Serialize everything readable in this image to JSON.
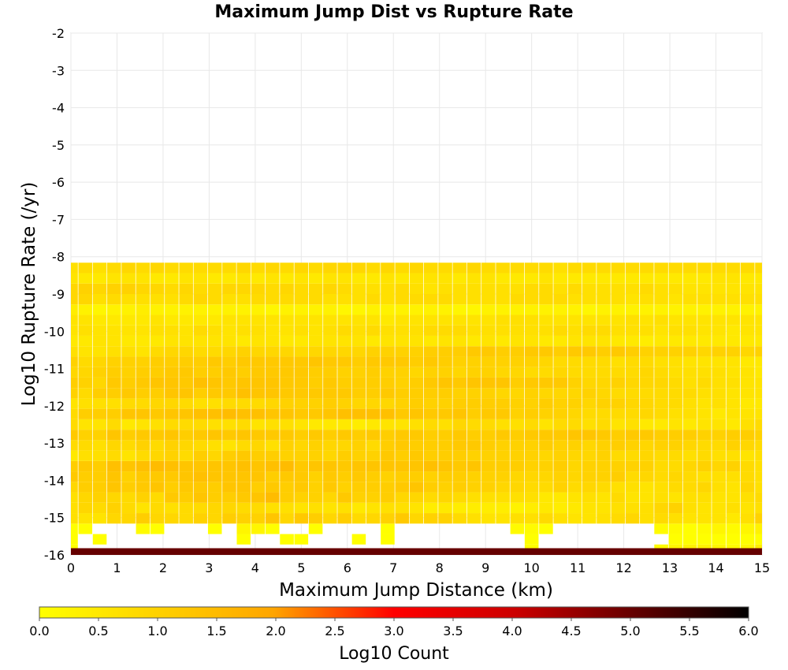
{
  "chart_data": {
    "type": "heatmap",
    "title": "Maximum Jump Dist vs Rupture Rate",
    "xlabel": "Maximum Jump Distance (km)",
    "ylabel": "Log10 Rupture Rate (/yr)",
    "colorbar_label": "Log10 Count",
    "xlim": [
      0,
      15
    ],
    "ylim": [
      -16,
      -2
    ],
    "x_ticks": [
      0,
      1,
      2,
      3,
      4,
      5,
      6,
      7,
      8,
      9,
      10,
      11,
      12,
      13,
      14,
      15
    ],
    "y_ticks": [
      -2,
      -3,
      -4,
      -5,
      -6,
      -7,
      -8,
      -9,
      -10,
      -11,
      -12,
      -13,
      -14,
      -15,
      -16
    ],
    "colorbar_ticks": [
      "0.0",
      "0.5",
      "1.0",
      "1.5",
      "2.0",
      "2.5",
      "3.0",
      "3.5",
      "4.0",
      "4.5",
      "5.0",
      "5.5",
      "6.0"
    ],
    "color_range": [
      0,
      6
    ],
    "colormap": [
      "#ffff00",
      "#ffa500",
      "#ff0000",
      "#000000"
    ],
    "grid": true,
    "x_bin_width": 1,
    "y_bin_height": 0.28,
    "y_bin_start": -16,
    "rows": [
      [
        0.0,
        null,
        null,
        null,
        null,
        null,
        null,
        null,
        null,
        null,
        null,
        null,
        null,
        null,
        null,
        null,
        null,
        null,
        null,
        null,
        null,
        null,
        null,
        null,
        null,
        null,
        null,
        null,
        null,
        null,
        null,
        null,
        0.0,
        null,
        null,
        null,
        null,
        null,
        null,
        null,
        null,
        0.1,
        0.2,
        0.3,
        0.3,
        0.2,
        0.1,
        0.2,
        0.4
      ],
      [
        0.0,
        null,
        0.0,
        null,
        null,
        null,
        null,
        null,
        null,
        null,
        null,
        null,
        0.0,
        null,
        null,
        0.0,
        0.0,
        null,
        null,
        null,
        0.0,
        null,
        0.0,
        null,
        null,
        null,
        null,
        null,
        null,
        null,
        null,
        null,
        0.0,
        null,
        null,
        null,
        null,
        null,
        null,
        null,
        null,
        null,
        0.0,
        0.0,
        0.0,
        0.0,
        0.0,
        0.0,
        0.0
      ],
      [
        0.0,
        0.0,
        null,
        null,
        null,
        0.1,
        0.0,
        null,
        null,
        null,
        0.0,
        null,
        0.2,
        0.2,
        0.0,
        null,
        null,
        0.0,
        null,
        null,
        null,
        null,
        0.0,
        null,
        null,
        null,
        null,
        null,
        null,
        null,
        null,
        0.1,
        0.1,
        0.0,
        null,
        null,
        null,
        null,
        null,
        null,
        null,
        0.1,
        0.1,
        0.0,
        0.1,
        0.2,
        0.1,
        0.2,
        0.3
      ],
      [
        0.7,
        0.6,
        0.6,
        0.9,
        0.9,
        1.1,
        0.9,
        0.9,
        0.8,
        1.0,
        0.9,
        1.1,
        1.0,
        1.0,
        1.3,
        0.9,
        1.2,
        1.1,
        0.9,
        1.1,
        0.8,
        0.9,
        1.0,
        1.2,
        0.9,
        1.0,
        1.0,
        0.8,
        0.7,
        0.6,
        0.6,
        0.7,
        0.7,
        0.8,
        0.7,
        0.6,
        0.6,
        0.7,
        0.8,
        0.9,
        0.7,
        0.8,
        0.7,
        0.6,
        0.6,
        0.6,
        0.5,
        0.7,
        1.0
      ],
      [
        0.7,
        0.9,
        0.8,
        1.0,
        0.8,
        0.6,
        0.8,
        0.7,
        0.8,
        0.8,
        0.9,
        0.9,
        0.8,
        0.8,
        0.7,
        0.7,
        0.6,
        0.7,
        0.6,
        0.7,
        0.5,
        0.6,
        0.7,
        0.7,
        0.6,
        0.4,
        0.5,
        0.4,
        0.4,
        0.4,
        0.4,
        0.3,
        0.4,
        0.5,
        0.4,
        0.5,
        0.6,
        0.6,
        0.7,
        0.7,
        0.7,
        0.9,
        1.0,
        0.7,
        0.6,
        0.6,
        0.7,
        0.6,
        0.7
      ],
      [
        0.7,
        0.9,
        1.0,
        0.9,
        0.8,
        1.0,
        0.8,
        1.2,
        1.1,
        1.3,
        1.1,
        1.1,
        1.2,
        1.3,
        1.5,
        1.1,
        1.0,
        1.0,
        0.9,
        1.2,
        1.0,
        1.0,
        1.1,
        0.9,
        0.9,
        0.8,
        0.9,
        0.8,
        0.7,
        0.7,
        0.7,
        0.7,
        0.7,
        0.5,
        0.5,
        0.6,
        0.7,
        0.6,
        0.8,
        0.6,
        0.6,
        0.7,
        0.6,
        0.7,
        0.7,
        0.6,
        0.6,
        0.7,
        0.8
      ],
      [
        0.9,
        1.1,
        1.1,
        1.3,
        1.1,
        1.2,
        1.3,
        1.1,
        1.2,
        1.2,
        1.1,
        1.3,
        1.3,
        1.1,
        1.2,
        1.1,
        1.2,
        1.0,
        1.2,
        1.0,
        1.1,
        1.1,
        1.1,
        1.2,
        1.3,
        1.1,
        1.0,
        1.1,
        1.0,
        1.0,
        0.9,
        0.9,
        0.8,
        0.8,
        1.0,
        0.8,
        0.9,
        0.8,
        0.7,
        0.7,
        0.6,
        0.7,
        0.8,
        0.8,
        0.9,
        0.7,
        0.6,
        0.9,
        0.7
      ],
      [
        1.2,
        1.1,
        1.1,
        1.3,
        1.0,
        1.2,
        1.2,
        1.2,
        1.3,
        1.4,
        1.3,
        1.3,
        1.3,
        1.3,
        1.1,
        1.2,
        1.2,
        1.0,
        1.2,
        1.1,
        1.2,
        1.1,
        1.0,
        1.1,
        1.1,
        1.0,
        1.1,
        1.1,
        1.0,
        1.0,
        1.0,
        0.9,
        0.9,
        0.9,
        1.0,
        0.9,
        1.0,
        1.0,
        1.1,
        0.8,
        0.9,
        0.8,
        0.9,
        0.8,
        0.7,
        0.7,
        0.7,
        0.8,
        0.7
      ],
      [
        1.1,
        1.2,
        1.1,
        1.4,
        1.3,
        1.4,
        1.5,
        1.4,
        1.3,
        1.3,
        1.3,
        1.3,
        1.4,
        1.3,
        1.4,
        1.5,
        1.2,
        1.3,
        1.3,
        1.2,
        1.3,
        1.3,
        1.3,
        1.3,
        1.3,
        1.4,
        1.3,
        1.2,
        1.3,
        1.1,
        1.1,
        1.1,
        1.0,
        1.0,
        1.1,
        0.9,
        1.0,
        1.0,
        1.0,
        1.0,
        1.0,
        0.8,
        0.8,
        0.9,
        1.0,
        0.9,
        1.0,
        0.8,
        0.7
      ],
      [
        0.5,
        0.7,
        0.7,
        0.8,
        0.6,
        0.8,
        0.9,
        1.0,
        0.8,
        1.1,
        0.9,
        1.1,
        1.2,
        1.1,
        1.1,
        1.0,
        1.0,
        1.0,
        0.9,
        1.1,
        1.0,
        1.0,
        1.2,
        1.1,
        1.2,
        1.1,
        1.1,
        1.1,
        1.0,
        1.0,
        1.0,
        1.0,
        1.0,
        0.9,
        1.0,
        0.9,
        0.9,
        1.0,
        0.8,
        0.8,
        0.9,
        0.8,
        0.8,
        0.7,
        0.8,
        0.7,
        0.7,
        0.6,
        0.7
      ],
      [
        0.8,
        0.8,
        0.7,
        0.9,
        0.8,
        1.0,
        0.8,
        1.0,
        0.9,
        0.8,
        0.7,
        0.6,
        0.8,
        0.9,
        0.7,
        1.0,
        0.9,
        1.0,
        0.9,
        0.9,
        1.0,
        0.8,
        1.1,
        1.2,
        1.1,
        1.1,
        1.1,
        1.2,
        1.2,
        1.1,
        1.0,
        1.0,
        1.0,
        1.1,
        1.0,
        1.0,
        0.9,
        1.0,
        1.1,
        1.0,
        0.9,
        1.0,
        1.0,
        0.9,
        0.8,
        0.8,
        1.0,
        0.9,
        0.8
      ],
      [
        1.2,
        1.0,
        1.0,
        1.3,
        1.1,
        1.2,
        1.2,
        1.3,
        1.1,
        1.2,
        1.3,
        1.2,
        1.3,
        1.2,
        1.2,
        1.2,
        1.1,
        1.2,
        1.1,
        1.2,
        1.1,
        1.2,
        1.1,
        1.2,
        1.2,
        1.1,
        1.1,
        1.2,
        1.1,
        1.1,
        1.2,
        1.1,
        1.2,
        1.2,
        1.2,
        1.3,
        1.3,
        1.2,
        1.1,
        1.2,
        1.2,
        1.1,
        1.1,
        1.1,
        1.0,
        1.0,
        1.1,
        1.1,
        1.0
      ],
      [
        0.8,
        0.6,
        0.6,
        0.8,
        0.5,
        0.6,
        0.7,
        0.8,
        0.8,
        0.8,
        0.7,
        0.7,
        0.8,
        0.6,
        0.7,
        0.7,
        0.6,
        0.5,
        0.5,
        0.5,
        0.4,
        0.5,
        0.6,
        0.6,
        0.7,
        0.8,
        0.7,
        0.9,
        0.8,
        0.8,
        0.7,
        0.7,
        0.8,
        0.6,
        0.8,
        0.8,
        0.7,
        0.8,
        0.6,
        0.7,
        0.5,
        0.5,
        0.6,
        0.5,
        0.6,
        0.6,
        0.5,
        0.7,
        0.8
      ],
      [
        0.8,
        1.1,
        1.1,
        1.1,
        1.3,
        1.3,
        1.2,
        1.3,
        1.3,
        1.4,
        1.4,
        1.5,
        1.4,
        1.4,
        1.3,
        1.3,
        1.2,
        1.2,
        1.3,
        1.4,
        1.4,
        1.4,
        1.4,
        1.2,
        1.3,
        1.2,
        1.2,
        1.3,
        1.1,
        1.2,
        1.2,
        1.0,
        1.1,
        1.0,
        1.0,
        0.9,
        0.8,
        0.8,
        0.8,
        0.8,
        0.9,
        0.8,
        0.7,
        0.7,
        0.6,
        0.5,
        0.6,
        0.6,
        0.6
      ],
      [
        0.6,
        0.7,
        0.7,
        0.7,
        0.8,
        0.8,
        0.9,
        0.9,
        0.8,
        0.7,
        0.7,
        0.8,
        0.8,
        0.8,
        0.9,
        1.0,
        1.0,
        1.0,
        1.1,
        1.0,
        0.9,
        0.9,
        0.9,
        1.0,
        1.1,
        1.0,
        1.0,
        1.1,
        1.1,
        1.1,
        1.1,
        1.0,
        1.0,
        1.1,
        1.0,
        1.0,
        0.9,
        1.0,
        1.0,
        0.9,
        0.9,
        0.8,
        0.8,
        0.7,
        0.6,
        0.7,
        0.6,
        0.5,
        0.5
      ],
      [
        1.0,
        0.8,
        1.1,
        1.1,
        1.2,
        1.1,
        1.1,
        1.3,
        1.3,
        1.1,
        1.2,
        1.2,
        1.4,
        1.3,
        1.3,
        1.2,
        1.2,
        1.2,
        1.2,
        1.2,
        1.1,
        1.1,
        1.2,
        1.1,
        1.1,
        1.1,
        1.1,
        1.0,
        1.0,
        1.0,
        0.9,
        0.9,
        1.0,
        0.9,
        0.9,
        0.9,
        1.0,
        0.9,
        0.8,
        0.8,
        0.8,
        0.8,
        0.8,
        0.8,
        0.7,
        0.7,
        0.6,
        0.6,
        0.6
      ],
      [
        1.1,
        1.0,
        0.9,
        1.2,
        1.1,
        1.2,
        1.3,
        1.3,
        1.2,
        1.4,
        1.3,
        1.2,
        1.3,
        1.3,
        1.3,
        1.2,
        1.2,
        1.1,
        1.2,
        1.1,
        1.1,
        1.1,
        1.1,
        1.0,
        1.1,
        1.2,
        1.3,
        1.2,
        1.3,
        1.3,
        1.3,
        1.1,
        1.2,
        1.2,
        1.2,
        1.0,
        0.9,
        0.9,
        1.0,
        0.9,
        0.9,
        0.9,
        0.8,
        0.7,
        0.8,
        0.7,
        0.7,
        0.6,
        0.6
      ],
      [
        0.9,
        0.9,
        1.0,
        1.1,
        1.0,
        1.1,
        1.1,
        1.2,
        1.2,
        1.1,
        1.1,
        1.2,
        1.1,
        1.2,
        1.2,
        1.2,
        1.2,
        1.1,
        1.1,
        1.0,
        1.0,
        1.1,
        1.0,
        1.0,
        0.9,
        1.0,
        1.0,
        0.9,
        1.0,
        1.0,
        0.9,
        0.9,
        0.8,
        0.8,
        0.9,
        0.8,
        0.8,
        0.8,
        0.8,
        0.8,
        0.9,
        0.8,
        0.7,
        0.7,
        0.7,
        0.7,
        0.6,
        0.6,
        0.5
      ],
      [
        1.0,
        0.8,
        0.9,
        1.0,
        1.0,
        1.0,
        1.1,
        1.1,
        1.1,
        1.1,
        1.2,
        1.1,
        1.2,
        1.2,
        1.2,
        1.2,
        1.2,
        1.3,
        1.2,
        1.2,
        1.1,
        1.2,
        1.2,
        1.2,
        1.1,
        1.2,
        1.1,
        1.0,
        1.0,
        1.0,
        1.0,
        1.0,
        1.0,
        0.9,
        0.8,
        0.8,
        0.8,
        0.8,
        0.7,
        0.8,
        0.8,
        0.7,
        0.7,
        0.6,
        0.6,
        0.6,
        0.6,
        0.5,
        0.5
      ],
      [
        0.7,
        0.6,
        0.6,
        0.7,
        0.7,
        0.6,
        0.8,
        0.9,
        0.9,
        0.8,
        0.8,
        0.9,
        1.0,
        0.9,
        0.9,
        0.9,
        0.8,
        0.9,
        0.9,
        0.9,
        0.9,
        1.0,
        1.0,
        1.0,
        1.0,
        1.1,
        1.1,
        1.1,
        1.2,
        1.2,
        1.1,
        1.1,
        1.2,
        1.2,
        1.1,
        1.2,
        1.2,
        1.1,
        1.2,
        1.1,
        1.0,
        1.0,
        1.0,
        1.0,
        0.9,
        1.0,
        1.0,
        0.9,
        1.0
      ],
      [
        0.5,
        0.5,
        0.6,
        0.6,
        0.5,
        0.5,
        0.5,
        0.6,
        0.6,
        0.6,
        0.6,
        0.6,
        0.5,
        0.6,
        0.6,
        0.5,
        0.5,
        0.6,
        0.6,
        0.6,
        0.6,
        0.5,
        0.6,
        0.6,
        0.6,
        0.5,
        0.6,
        0.6,
        0.5,
        0.6,
        0.5,
        0.6,
        0.6,
        0.5,
        0.5,
        0.6,
        0.6,
        0.6,
        0.5,
        0.5,
        0.4,
        0.5,
        0.5,
        0.5,
        0.5,
        0.5,
        0.5,
        0.5,
        0.5
      ],
      [
        0.6,
        0.7,
        0.6,
        0.6,
        0.6,
        0.6,
        0.7,
        0.7,
        0.6,
        0.8,
        0.7,
        0.6,
        0.7,
        0.7,
        0.6,
        0.6,
        0.7,
        0.6,
        0.7,
        0.8,
        0.7,
        0.8,
        0.7,
        0.7,
        0.7,
        0.8,
        0.8,
        0.8,
        0.7,
        0.7,
        0.7,
        0.7,
        0.7,
        0.7,
        0.8,
        0.7,
        0.8,
        0.8,
        0.7,
        0.7,
        0.7,
        0.6,
        0.7,
        0.7,
        0.6,
        0.6,
        0.5,
        0.6,
        0.6
      ],
      [
        0.6,
        0.6,
        0.5,
        0.5,
        0.5,
        0.5,
        0.6,
        0.5,
        0.5,
        0.5,
        0.5,
        0.6,
        0.6,
        0.6,
        0.6,
        0.6,
        0.6,
        0.6,
        0.6,
        0.6,
        0.6,
        0.6,
        0.5,
        0.6,
        0.6,
        0.6,
        0.6,
        0.6,
        0.6,
        0.6,
        0.7,
        0.7,
        0.7,
        0.6,
        0.6,
        0.6,
        0.6,
        0.6,
        0.6,
        0.7,
        0.6,
        0.7,
        0.6,
        0.6,
        0.6,
        0.6,
        0.6,
        0.6,
        0.6
      ],
      [
        0.4,
        0.3,
        0.2,
        0.3,
        0.3,
        0.4,
        0.3,
        0.3,
        0.3,
        0.3,
        0.3,
        0.3,
        0.3,
        0.3,
        0.2,
        0.3,
        0.3,
        0.3,
        0.3,
        0.2,
        0.2,
        0.3,
        0.3,
        0.3,
        0.3,
        0.3,
        0.3,
        0.2,
        0.2,
        0.3,
        0.3,
        0.3,
        0.3,
        0.3,
        0.3,
        0.3,
        0.2,
        0.3,
        0.3,
        0.3,
        0.3,
        0.3,
        0.3,
        0.3,
        0.3,
        0.3,
        0.3,
        0.3,
        0.3
      ],
      [
        0.9,
        0.9,
        0.7,
        0.8,
        0.7,
        0.7,
        0.7,
        0.7,
        0.8,
        0.9,
        0.8,
        0.7,
        0.7,
        0.8,
        0.8,
        0.8,
        0.8,
        0.8,
        0.7,
        0.7,
        0.7,
        0.8,
        0.7,
        0.8,
        0.8,
        0.8,
        0.8,
        0.7,
        0.7,
        0.7,
        0.7,
        0.8,
        0.8,
        0.8,
        0.8,
        0.7,
        0.7,
        0.7,
        0.7,
        0.6,
        0.7,
        0.7,
        0.6,
        0.7,
        0.7,
        0.7,
        0.7,
        0.7,
        0.7
      ],
      [
        0.9,
        1.0,
        0.9,
        1.0,
        1.0,
        0.9,
        0.9,
        0.8,
        0.9,
        0.8,
        0.8,
        0.9,
        0.9,
        0.9,
        0.8,
        0.9,
        0.8,
        0.8,
        0.9,
        0.8,
        0.7,
        0.7,
        0.7,
        0.8,
        0.7,
        0.6,
        0.7,
        0.7,
        0.7,
        0.7,
        0.7,
        0.7,
        0.8,
        0.8,
        0.7,
        0.8,
        0.7,
        0.7,
        0.7,
        0.7,
        0.8,
        0.7,
        0.7,
        0.6,
        0.6,
        0.6,
        0.6,
        0.6,
        0.6
      ],
      [
        0.6,
        0.5,
        0.5,
        0.6,
        0.6,
        0.6,
        0.5,
        0.5,
        0.6,
        0.6,
        0.5,
        0.5,
        0.6,
        0.5,
        0.6,
        0.5,
        0.6,
        0.5,
        0.6,
        0.6,
        0.5,
        0.5,
        0.6,
        0.5,
        0.6,
        0.6,
        0.6,
        0.5,
        0.6,
        0.6,
        0.5,
        0.5,
        0.5,
        0.6,
        0.5,
        0.5,
        0.5,
        0.5,
        0.5,
        0.5,
        0.5,
        0.5,
        0.5,
        0.5,
        0.5,
        0.6,
        0.6,
        0.5,
        0.5
      ],
      [
        0.7,
        0.8,
        0.7,
        0.8,
        0.9,
        0.8,
        0.9,
        0.8,
        0.8,
        0.8,
        0.8,
        0.8,
        0.9,
        0.8,
        0.9,
        0.8,
        0.9,
        0.8,
        0.9,
        0.9,
        0.9,
        0.8,
        0.9,
        0.8,
        0.9,
        0.8,
        0.8,
        0.8,
        0.9,
        0.8,
        0.8,
        0.8,
        0.8,
        0.8,
        0.7,
        0.8,
        0.8,
        0.8,
        0.8,
        0.8,
        0.8,
        0.8,
        0.8,
        0.8,
        0.8,
        0.8,
        0.8,
        0.8,
        0.8
      ]
    ],
    "bottom_band_value": 5.0,
    "notes_cells": [
      [
        0,
        -16.0,
        -15.72,
        null
      ]
    ]
  }
}
